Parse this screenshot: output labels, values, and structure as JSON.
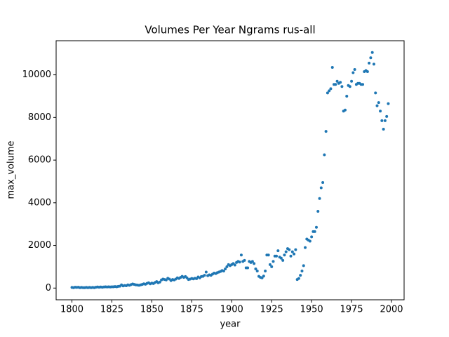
{
  "chart_data": {
    "type": "scatter",
    "title": "Volumes Per Year Ngrams rus-all",
    "x_label": "year",
    "y_label": "max_volume",
    "color": "#1f77b4",
    "xlim": [
      1790.1,
      2007.9
    ],
    "ylim": [
      -550,
      11600
    ],
    "xticks": [
      1800,
      1825,
      1850,
      1875,
      1900,
      1925,
      1950,
      1975,
      2000
    ],
    "yticks": [
      0,
      2000,
      4000,
      6000,
      8000,
      10000
    ],
    "x": [
      1800,
      1801,
      1802,
      1803,
      1804,
      1805,
      1806,
      1807,
      1808,
      1809,
      1810,
      1811,
      1812,
      1813,
      1814,
      1815,
      1816,
      1817,
      1818,
      1819,
      1820,
      1821,
      1822,
      1823,
      1824,
      1825,
      1826,
      1827,
      1828,
      1829,
      1830,
      1831,
      1832,
      1833,
      1834,
      1835,
      1836,
      1837,
      1838,
      1839,
      1840,
      1841,
      1842,
      1843,
      1844,
      1845,
      1846,
      1847,
      1848,
      1849,
      1850,
      1851,
      1852,
      1853,
      1854,
      1855,
      1856,
      1857,
      1858,
      1859,
      1860,
      1861,
      1862,
      1863,
      1864,
      1865,
      1866,
      1867,
      1868,
      1869,
      1870,
      1871,
      1872,
      1873,
      1874,
      1875,
      1876,
      1877,
      1878,
      1879,
      1880,
      1881,
      1882,
      1883,
      1884,
      1885,
      1886,
      1887,
      1888,
      1889,
      1890,
      1891,
      1892,
      1893,
      1894,
      1895,
      1896,
      1897,
      1898,
      1899,
      1900,
      1901,
      1902,
      1903,
      1904,
      1905,
      1906,
      1907,
      1908,
      1909,
      1910,
      1911,
      1912,
      1913,
      1914,
      1915,
      1916,
      1917,
      1918,
      1919,
      1920,
      1921,
      1922,
      1923,
      1924,
      1925,
      1926,
      1927,
      1928,
      1929,
      1930,
      1931,
      1932,
      1933,
      1934,
      1935,
      1936,
      1937,
      1938,
      1939,
      1940,
      1941,
      1942,
      1943,
      1944,
      1945,
      1946,
      1947,
      1948,
      1949,
      1950,
      1951,
      1952,
      1953,
      1954,
      1955,
      1956,
      1957,
      1958,
      1959,
      1960,
      1961,
      1962,
      1963,
      1964,
      1965,
      1966,
      1967,
      1968,
      1969,
      1970,
      1971,
      1972,
      1973,
      1974,
      1975,
      1976,
      1977,
      1978,
      1979,
      1980,
      1981,
      1982,
      1983,
      1984,
      1985,
      1986,
      1987,
      1988,
      1989,
      1990,
      1991,
      1992,
      1993,
      1994,
      1995,
      1996,
      1997,
      1998
    ],
    "values": [
      30,
      20,
      40,
      30,
      40,
      20,
      30,
      20,
      20,
      30,
      20,
      30,
      20,
      30,
      20,
      40,
      50,
      40,
      50,
      40,
      50,
      60,
      50,
      60,
      50,
      60,
      60,
      70,
      60,
      80,
      90,
      150,
      100,
      120,
      110,
      150,
      130,
      160,
      190,
      170,
      150,
      140,
      130,
      150,
      170,
      200,
      180,
      220,
      250,
      200,
      230,
      210,
      260,
      300,
      250,
      280,
      380,
      420,
      400,
      380,
      460,
      420,
      350,
      400,
      380,
      420,
      480,
      450,
      500,
      550,
      500,
      540,
      480,
      400,
      420,
      450,
      430,
      460,
      440,
      520,
      480,
      540,
      550,
      600,
      750,
      580,
      620,
      600,
      650,
      700,
      680,
      720,
      750,
      780,
      820,
      800,
      900,
      1000,
      1100,
      1050,
      1100,
      1150,
      1080,
      1200,
      1250,
      1220,
      1550,
      1250,
      1300,
      950,
      950,
      1250,
      1200,
      1250,
      1150,
      900,
      800,
      550,
      500,
      480,
      560,
      800,
      1550,
      1550,
      1100,
      1000,
      1250,
      1500,
      1500,
      1750,
      1450,
      1400,
      1300,
      1550,
      1700,
      1850,
      1800,
      1500,
      1700,
      1600,
      1800,
      400,
      450,
      600,
      800,
      1050,
      1900,
      2300,
      2250,
      2200,
      2400,
      2650,
      2650,
      2850,
      3600,
      4200,
      4700,
      4950,
      6250,
      7350,
      9150,
      9250,
      9350,
      10350,
      9550,
      9550,
      9700,
      9600,
      9650,
      9450,
      8300,
      8350,
      9000,
      9500,
      9450,
      9700,
      10100,
      10250,
      9550,
      9600,
      9600,
      9550,
      9550,
      10150,
      10200,
      10150,
      10550,
      10800,
      11050,
      10500,
      9150,
      8550,
      8700,
      8300,
      7850,
      7450,
      7850,
      8050,
      8650
    ]
  }
}
